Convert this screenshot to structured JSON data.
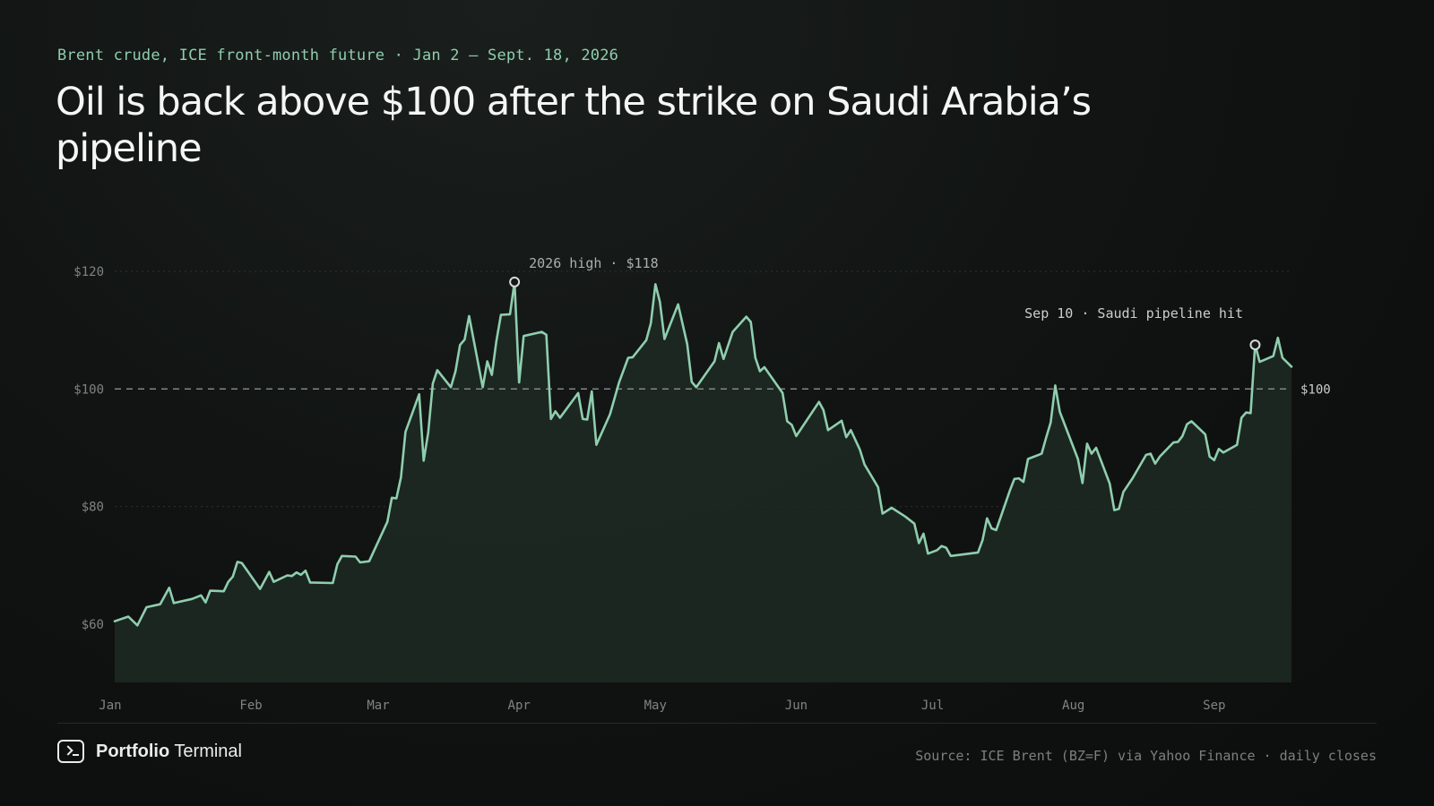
{
  "header": {
    "kicker": "Brent crude, ICE front-month future · Jan 2 – Sept. 18, 2026",
    "title": "Oil is back above $100 after the strike on Saudi Arabia’s pipeline"
  },
  "footer": {
    "brand_bold": "Portfolio",
    "brand_light": "Terminal",
    "brand_icon": "terminal-icon",
    "source": "Source: ICE Brent (BZ=F) via Yahoo Finance · daily closes"
  },
  "colors": {
    "line": "#8fceae",
    "area": "#1e2924",
    "grid": "#2e3331",
    "reference": "#8a8f8d",
    "tick_text": "#7f8482",
    "annotation_text": "#c9cfcc",
    "high_annotation_text": "#aab0ad"
  },
  "chart_data": {
    "type": "area",
    "title": "Oil is back above $100 after the strike on Saudi Arabia’s pipeline",
    "xlabel": "",
    "ylabel": "",
    "ylim": [
      50,
      127
    ],
    "y_ticks": [
      60,
      80,
      100,
      120
    ],
    "y_tick_labels": [
      "$60",
      "$80",
      "$100",
      "$120"
    ],
    "x_range": [
      "2026-01-02",
      "2026-09-18"
    ],
    "x_ticks": [
      {
        "date": "2026-01-01",
        "label": "Jan"
      },
      {
        "date": "2026-02-01",
        "label": "Feb"
      },
      {
        "date": "2026-03-01",
        "label": "Mar"
      },
      {
        "date": "2026-04-01",
        "label": "Apr"
      },
      {
        "date": "2026-05-01",
        "label": "May"
      },
      {
        "date": "2026-06-01",
        "label": "Jun"
      },
      {
        "date": "2026-07-01",
        "label": "Jul"
      },
      {
        "date": "2026-08-01",
        "label": "Aug"
      },
      {
        "date": "2026-09-01",
        "label": "Sep"
      }
    ],
    "grid": true,
    "reference_line": {
      "value": 100,
      "label": "$100"
    },
    "annotations": [
      {
        "date": "2026-03-31",
        "value": 118.2,
        "label": "2026 high · $118"
      },
      {
        "date": "2026-09-10",
        "value": 107.5,
        "label": "Sep 10 · Saudi pipeline hit"
      }
    ],
    "series": [
      {
        "points": [
          [
            "2026-01-02",
            60.5
          ],
          [
            "2026-01-05",
            61.3
          ],
          [
            "2026-01-07",
            59.8
          ],
          [
            "2026-01-09",
            62.9
          ],
          [
            "2026-01-12",
            63.4
          ],
          [
            "2026-01-14",
            66.2
          ],
          [
            "2026-01-15",
            63.6
          ],
          [
            "2026-01-19",
            64.3
          ],
          [
            "2026-01-21",
            64.9
          ],
          [
            "2026-01-22",
            63.7
          ],
          [
            "2026-01-23",
            65.7
          ],
          [
            "2026-01-26",
            65.6
          ],
          [
            "2026-01-27",
            67.2
          ],
          [
            "2026-01-28",
            68.1
          ],
          [
            "2026-01-29",
            70.6
          ],
          [
            "2026-01-30",
            70.4
          ],
          [
            "2026-02-03",
            66.0
          ],
          [
            "2026-02-05",
            68.9
          ],
          [
            "2026-02-06",
            67.2
          ],
          [
            "2026-02-09",
            68.3
          ],
          [
            "2026-02-10",
            68.2
          ],
          [
            "2026-02-11",
            68.8
          ],
          [
            "2026-02-12",
            68.4
          ],
          [
            "2026-02-13",
            69.1
          ],
          [
            "2026-02-14",
            67.1
          ],
          [
            "2026-02-19",
            67.0
          ],
          [
            "2026-02-20",
            70.2
          ],
          [
            "2026-02-21",
            71.6
          ],
          [
            "2026-02-24",
            71.5
          ],
          [
            "2026-02-25",
            70.5
          ],
          [
            "2026-02-27",
            70.7
          ],
          [
            "2026-03-03",
            77.4
          ],
          [
            "2026-03-04",
            81.5
          ],
          [
            "2026-03-05",
            81.4
          ],
          [
            "2026-03-06",
            85.0
          ],
          [
            "2026-03-07",
            92.7
          ],
          [
            "2026-03-10",
            99.1
          ],
          [
            "2026-03-11",
            87.8
          ],
          [
            "2026-03-12",
            92.6
          ],
          [
            "2026-03-13",
            100.9
          ],
          [
            "2026-03-14",
            103.2
          ],
          [
            "2026-03-17",
            100.3
          ],
          [
            "2026-03-18",
            103.0
          ],
          [
            "2026-03-19",
            107.5
          ],
          [
            "2026-03-20",
            108.4
          ],
          [
            "2026-03-21",
            112.4
          ],
          [
            "2026-03-24",
            100.3
          ],
          [
            "2026-03-25",
            104.7
          ],
          [
            "2026-03-26",
            102.4
          ],
          [
            "2026-03-27",
            108.1
          ],
          [
            "2026-03-28",
            112.6
          ],
          [
            "2026-03-30",
            112.7
          ],
          [
            "2026-03-31",
            118.2
          ],
          [
            "2026-04-01",
            101.1
          ],
          [
            "2026-04-02",
            109.0
          ],
          [
            "2026-04-06",
            109.7
          ],
          [
            "2026-04-07",
            109.2
          ],
          [
            "2026-04-08",
            94.9
          ],
          [
            "2026-04-09",
            96.2
          ],
          [
            "2026-04-10",
            95.1
          ],
          [
            "2026-04-14",
            99.3
          ],
          [
            "2026-04-15",
            94.9
          ],
          [
            "2026-04-16",
            94.8
          ],
          [
            "2026-04-17",
            99.6
          ],
          [
            "2026-04-18",
            90.5
          ],
          [
            "2026-04-21",
            95.7
          ],
          [
            "2026-04-23",
            101.1
          ],
          [
            "2026-04-25",
            105.3
          ],
          [
            "2026-04-26",
            105.4
          ],
          [
            "2026-04-29",
            108.3
          ],
          [
            "2026-04-30",
            111.2
          ],
          [
            "2026-05-01",
            117.8
          ],
          [
            "2026-05-02",
            114.8
          ],
          [
            "2026-05-03",
            108.5
          ],
          [
            "2026-05-06",
            114.4
          ],
          [
            "2026-05-08",
            107.6
          ],
          [
            "2026-05-09",
            101.2
          ],
          [
            "2026-05-10",
            100.3
          ],
          [
            "2026-05-14",
            104.7
          ],
          [
            "2026-05-15",
            107.8
          ],
          [
            "2026-05-16",
            105.1
          ],
          [
            "2026-05-18",
            109.7
          ],
          [
            "2026-05-21",
            112.3
          ],
          [
            "2026-05-22",
            111.4
          ],
          [
            "2026-05-23",
            105.3
          ],
          [
            "2026-05-24",
            103.0
          ],
          [
            "2026-05-25",
            103.7
          ],
          [
            "2026-05-29",
            99.3
          ],
          [
            "2026-05-30",
            94.5
          ],
          [
            "2026-05-31",
            93.9
          ],
          [
            "2026-06-01",
            92.0
          ],
          [
            "2026-06-06",
            97.8
          ],
          [
            "2026-06-07",
            96.4
          ],
          [
            "2026-06-08",
            93.0
          ],
          [
            "2026-06-11",
            94.6
          ],
          [
            "2026-06-12",
            91.8
          ],
          [
            "2026-06-13",
            93.0
          ],
          [
            "2026-06-15",
            89.7
          ],
          [
            "2026-06-16",
            87.2
          ],
          [
            "2026-06-19",
            83.3
          ],
          [
            "2026-06-20",
            78.8
          ],
          [
            "2026-06-22",
            79.8
          ],
          [
            "2026-06-25",
            78.3
          ],
          [
            "2026-06-27",
            77.1
          ],
          [
            "2026-06-28",
            73.8
          ],
          [
            "2026-06-29",
            75.4
          ],
          [
            "2026-06-30",
            72.0
          ],
          [
            "2026-07-02",
            72.6
          ],
          [
            "2026-07-03",
            73.3
          ],
          [
            "2026-07-04",
            73.0
          ],
          [
            "2026-07-05",
            71.6
          ],
          [
            "2026-07-11",
            72.2
          ],
          [
            "2026-07-12",
            74.3
          ],
          [
            "2026-07-13",
            78.0
          ],
          [
            "2026-07-14",
            76.3
          ],
          [
            "2026-07-15",
            76.0
          ],
          [
            "2026-07-18",
            82.7
          ],
          [
            "2026-07-19",
            84.7
          ],
          [
            "2026-07-20",
            84.8
          ],
          [
            "2026-07-21",
            84.2
          ],
          [
            "2026-07-22",
            88.1
          ],
          [
            "2026-07-25",
            89.0
          ],
          [
            "2026-07-26",
            91.7
          ],
          [
            "2026-07-27",
            94.3
          ],
          [
            "2026-07-28",
            100.6
          ],
          [
            "2026-07-29",
            96.1
          ],
          [
            "2026-08-02",
            88.1
          ],
          [
            "2026-08-03",
            84.0
          ],
          [
            "2026-08-04",
            90.7
          ],
          [
            "2026-08-05",
            89.0
          ],
          [
            "2026-08-06",
            90.0
          ],
          [
            "2026-08-09",
            83.9
          ],
          [
            "2026-08-10",
            79.4
          ],
          [
            "2026-08-11",
            79.6
          ],
          [
            "2026-08-12",
            82.5
          ],
          [
            "2026-08-14",
            84.8
          ],
          [
            "2026-08-17",
            88.8
          ],
          [
            "2026-08-18",
            89.0
          ],
          [
            "2026-08-19",
            87.3
          ],
          [
            "2026-08-20",
            88.5
          ],
          [
            "2026-08-23",
            90.9
          ],
          [
            "2026-08-24",
            91.0
          ],
          [
            "2026-08-25",
            92.0
          ],
          [
            "2026-08-26",
            94.0
          ],
          [
            "2026-08-27",
            94.5
          ],
          [
            "2026-08-30",
            92.3
          ],
          [
            "2026-08-31",
            88.5
          ],
          [
            "2026-09-01",
            87.9
          ],
          [
            "2026-09-02",
            89.8
          ],
          [
            "2026-09-03",
            89.2
          ],
          [
            "2026-09-06",
            90.5
          ],
          [
            "2026-09-07",
            95.1
          ],
          [
            "2026-09-08",
            96.0
          ],
          [
            "2026-09-09",
            95.9
          ],
          [
            "2026-09-10",
            107.5
          ],
          [
            "2026-09-11",
            104.6
          ],
          [
            "2026-09-14",
            105.6
          ],
          [
            "2026-09-15",
            108.7
          ],
          [
            "2026-09-16",
            105.3
          ],
          [
            "2026-09-18",
            103.8
          ]
        ]
      }
    ]
  }
}
